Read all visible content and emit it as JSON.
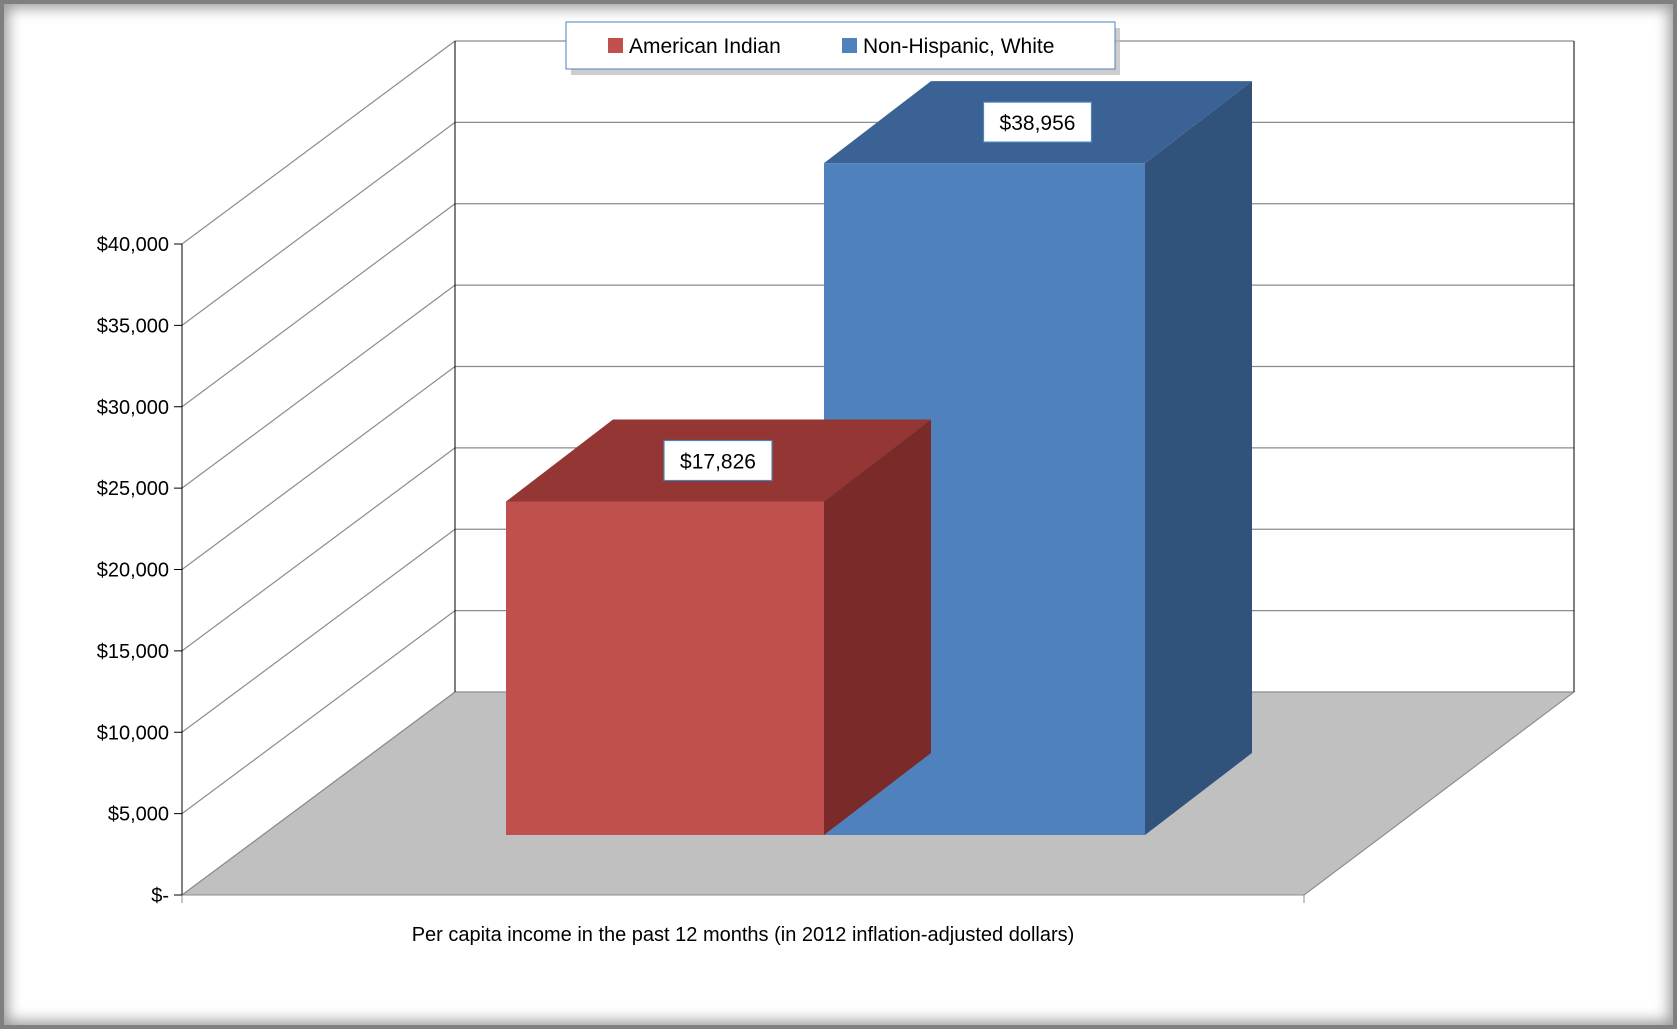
{
  "chart_data": {
    "type": "bar",
    "categories": [
      "Per capita income in the past 12 months (in 2012 inflation-adjusted dollars)"
    ],
    "series": [
      {
        "name": "American Indian",
        "values": [
          17826
        ],
        "value_labels": [
          "$17,826"
        ],
        "color": "#c0504d",
        "top_color": "#943634",
        "side_color": "#7a2b29"
      },
      {
        "name": "Non-Hispanic, White",
        "values": [
          38956
        ],
        "value_labels": [
          "$38,956"
        ],
        "color": "#4f81bd",
        "top_color": "#3b6294",
        "side_color": "#31527a"
      }
    ],
    "ylim": [
      0,
      40000
    ],
    "ytick_values": [
      0,
      5000,
      10000,
      15000,
      20000,
      25000,
      30000,
      35000,
      40000
    ],
    "ytick_labels": [
      "$-",
      "$5,000",
      "$10,000",
      "$15,000",
      "$20,000",
      "$25,000",
      "$30,000",
      "$35,000",
      "$40,000"
    ],
    "xlabel": "Per capita income in the past 12 months (in 2012 inflation-adjusted dollars)",
    "ylabel": "",
    "title": "",
    "grid": true,
    "legend_position": "top",
    "floor_color": "#c0c0c0",
    "wall_grid_color": "#8c8c8c"
  }
}
